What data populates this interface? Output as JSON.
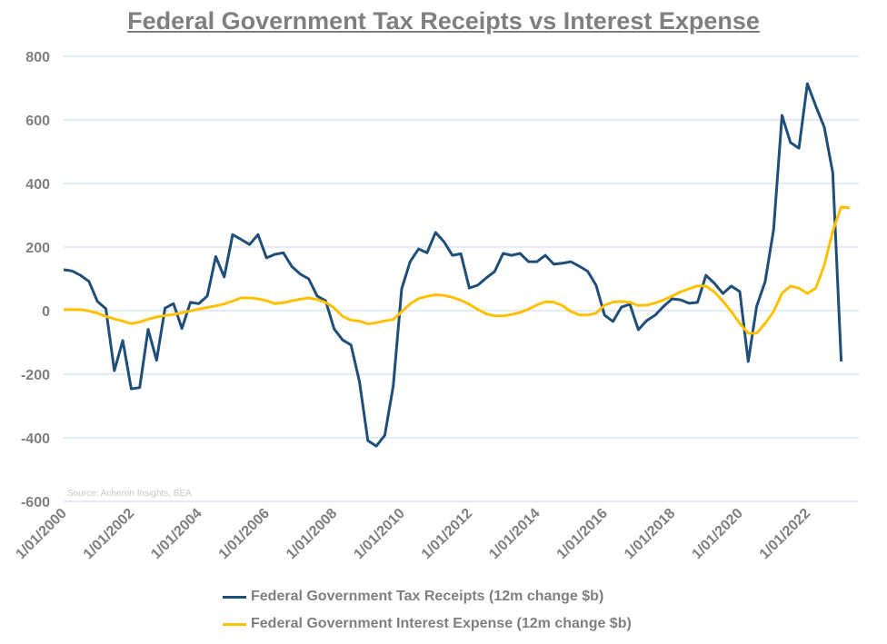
{
  "chart_data": {
    "type": "line",
    "title": "Federal Government Tax Receipts vs Interest Expense",
    "source": "Source: Acheron Insights, BEA",
    "x_start": "2000-01",
    "x_frequency": "quarterly",
    "x_tick_labels": [
      "1/01/2000",
      "1/01/2002",
      "1/01/2004",
      "1/01/2006",
      "1/01/2008",
      "1/01/2010",
      "1/01/2012",
      "1/01/2014",
      "1/01/2016",
      "1/01/2018",
      "1/01/2020",
      "1/01/2022"
    ],
    "ylim": [
      -600,
      800
    ],
    "y_ticks": [
      800,
      600,
      400,
      200,
      0,
      -200,
      -400,
      -600
    ],
    "grid": true,
    "legend_position": "bottom",
    "series": [
      {
        "name": "Federal Government Tax Receipts (12m change $b)",
        "color": "#1f4e79",
        "values": [
          129,
          125,
          111,
          92,
          29,
          6,
          -189,
          -94,
          -246,
          -242,
          -59,
          -156,
          8,
          22,
          -56,
          26,
          22,
          46,
          170,
          106,
          239,
          224,
          208,
          239,
          166,
          177,
          182,
          139,
          115,
          100,
          46,
          31,
          -57,
          -92,
          -108,
          -223,
          -409,
          -426,
          -392,
          -237,
          69,
          154,
          194,
          182,
          246,
          217,
          174,
          179,
          71,
          80,
          103,
          123,
          180,
          174,
          180,
          154,
          154,
          174,
          146,
          149,
          154,
          140,
          124,
          80,
          -14,
          -34,
          11,
          20,
          -60,
          -31,
          -14,
          14,
          37,
          34,
          23,
          26,
          111,
          86,
          54,
          77,
          60,
          -160,
          14,
          91,
          254,
          614,
          529,
          511,
          714,
          643,
          577,
          434,
          -160
        ]
      },
      {
        "name": "Federal Government Interest Expense (12m change $b)",
        "color": "#ffc000",
        "values": [
          3,
          3,
          3,
          -1,
          -8,
          -18,
          -26,
          -33,
          -41,
          -36,
          -27,
          -20,
          -15,
          -12,
          -7,
          -1,
          5,
          10,
          15,
          21,
          30,
          40,
          40,
          37,
          31,
          22,
          25,
          31,
          36,
          40,
          35,
          26,
          9,
          -18,
          -30,
          -33,
          -42,
          -38,
          -32,
          -28,
          -3,
          21,
          38,
          45,
          50,
          48,
          42,
          33,
          20,
          4,
          -10,
          -16,
          -17,
          -12,
          -6,
          5,
          18,
          28,
          27,
          16,
          -3,
          -13,
          -14,
          -8,
          17,
          27,
          29,
          26,
          16,
          17,
          24,
          34,
          46,
          59,
          69,
          78,
          77,
          59,
          30,
          -3,
          -40,
          -71,
          -71,
          -40,
          -3,
          55,
          77,
          71,
          54,
          71,
          143,
          250,
          326,
          323
        ]
      }
    ]
  }
}
